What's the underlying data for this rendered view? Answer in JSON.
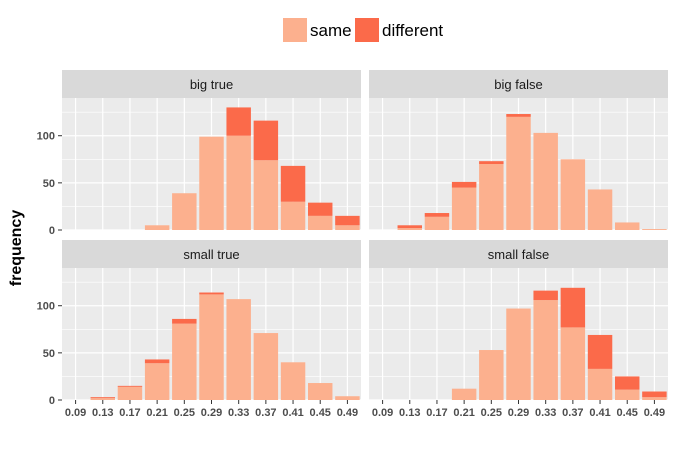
{
  "chart_data": {
    "type": "bar",
    "stacked": true,
    "ylabel": "frequency",
    "xlabel": "",
    "ylim": [
      0,
      140
    ],
    "yticks": [
      0,
      50,
      100
    ],
    "grid": true,
    "legend_position": "top",
    "categories": [
      "0.09",
      "0.13",
      "0.17",
      "0.21",
      "0.25",
      "0.29",
      "0.33",
      "0.37",
      "0.41",
      "0.45",
      "0.49"
    ],
    "series_names": [
      "same",
      "different"
    ],
    "colors": {
      "same": "#fcb08e",
      "different": "#fb6a4a",
      "panel_bg": "#ebebeb",
      "strip_bg": "#d9d9d9",
      "grid": "#ffffff"
    },
    "panels": [
      {
        "label": "big true",
        "same": [
          0,
          0,
          0,
          5,
          39,
          99,
          100,
          74,
          30,
          15,
          5
        ],
        "different": [
          0,
          0,
          0,
          0,
          0,
          0,
          30,
          42,
          38,
          14,
          10
        ]
      },
      {
        "label": "big false",
        "same": [
          0,
          2,
          14,
          45,
          70,
          120,
          103,
          75,
          43,
          8,
          1
        ],
        "different": [
          0,
          3,
          4,
          6,
          3,
          3,
          0,
          0,
          0,
          0,
          0
        ]
      },
      {
        "label": "small true",
        "same": [
          0,
          2,
          14,
          39,
          81,
          112,
          107,
          71,
          40,
          18,
          4
        ],
        "different": [
          0,
          1,
          1,
          4,
          5,
          2,
          0,
          0,
          0,
          0,
          0
        ]
      },
      {
        "label": "small false",
        "same": [
          0,
          0,
          0,
          12,
          53,
          97,
          106,
          77,
          33,
          11,
          3
        ],
        "different": [
          0,
          0,
          0,
          0,
          0,
          0,
          10,
          42,
          36,
          14,
          6
        ]
      }
    ]
  }
}
